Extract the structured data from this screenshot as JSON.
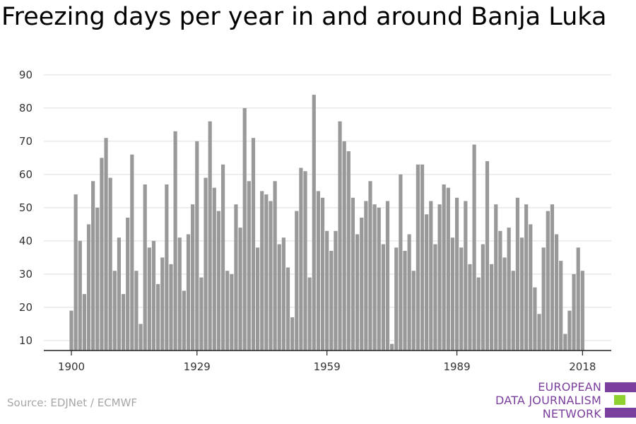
{
  "title": "Freezing days per year in and around Banja Luka",
  "source": "Source: EDJNet / ECMWF",
  "logo": {
    "lines": [
      "EUROPEAN",
      "DATA JOURNALISM",
      "NETWORK"
    ],
    "colors": {
      "purple": "#7b3f9e",
      "green": "#8fd12e"
    }
  },
  "chart_data": {
    "type": "bar",
    "title": "Freezing days per year in and around Banja Luka",
    "xlabel": "",
    "ylabel": "",
    "ylim": [
      7,
      90
    ],
    "yticks": [
      10,
      20,
      30,
      40,
      50,
      60,
      70,
      80,
      90
    ],
    "xticks": [
      "1900",
      "1929",
      "1959",
      "1989",
      "2018"
    ],
    "grid": true,
    "bar_color": "#999999",
    "x": [
      1900,
      1901,
      1902,
      1903,
      1904,
      1905,
      1906,
      1907,
      1908,
      1909,
      1910,
      1911,
      1912,
      1913,
      1914,
      1915,
      1916,
      1917,
      1918,
      1919,
      1920,
      1921,
      1922,
      1923,
      1924,
      1925,
      1926,
      1927,
      1928,
      1929,
      1930,
      1931,
      1932,
      1933,
      1934,
      1935,
      1936,
      1937,
      1938,
      1939,
      1940,
      1941,
      1942,
      1943,
      1944,
      1945,
      1946,
      1947,
      1948,
      1949,
      1950,
      1951,
      1952,
      1953,
      1954,
      1955,
      1956,
      1957,
      1958,
      1959,
      1960,
      1961,
      1962,
      1963,
      1964,
      1965,
      1966,
      1967,
      1968,
      1969,
      1970,
      1971,
      1972,
      1973,
      1974,
      1975,
      1976,
      1977,
      1978,
      1979,
      1980,
      1981,
      1982,
      1983,
      1984,
      1985,
      1986,
      1987,
      1988,
      1989,
      1990,
      1991,
      1992,
      1993,
      1994,
      1995,
      1996,
      1997,
      1998,
      1999,
      2000,
      2001,
      2002,
      2003,
      2004,
      2005,
      2006,
      2007,
      2008,
      2009,
      2010,
      2011,
      2012,
      2013,
      2014,
      2015,
      2016,
      2017,
      2018
    ],
    "values": [
      19,
      54,
      40,
      24,
      45,
      58,
      50,
      65,
      71,
      59,
      31,
      41,
      24,
      47,
      66,
      31,
      15,
      57,
      38,
      40,
      27,
      35,
      57,
      33,
      73,
      41,
      25,
      42,
      51,
      70,
      29,
      59,
      76,
      56,
      49,
      63,
      31,
      30,
      51,
      44,
      80,
      58,
      71,
      38,
      55,
      54,
      52,
      58,
      39,
      41,
      32,
      17,
      49,
      62,
      61,
      29,
      84,
      55,
      53,
      43,
      37,
      43,
      76,
      70,
      67,
      53,
      42,
      47,
      52,
      58,
      51,
      50,
      39,
      52,
      9,
      38,
      60,
      37,
      42,
      31,
      63,
      63,
      48,
      52,
      39,
      51,
      57,
      56,
      41,
      53,
      38,
      52,
      33,
      69,
      29,
      39,
      64,
      33,
      51,
      43,
      35,
      44,
      31,
      53,
      41,
      51,
      45,
      26,
      18,
      38,
      49,
      51,
      42,
      34,
      12,
      19,
      30,
      38,
      31
    ]
  }
}
